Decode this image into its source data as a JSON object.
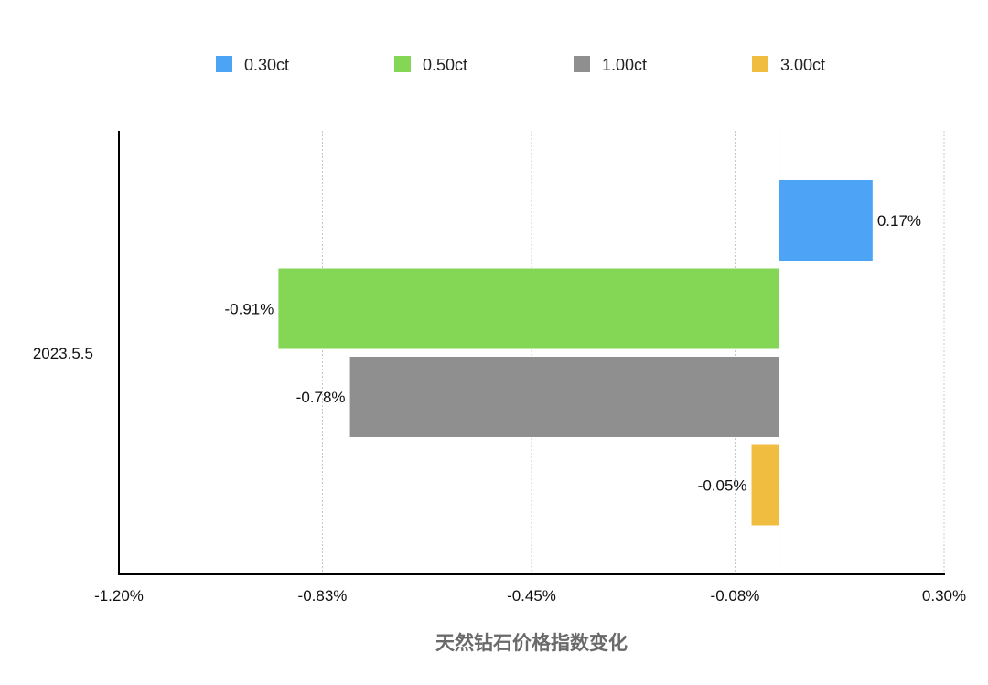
{
  "chart_data": {
    "type": "bar",
    "orientation": "horizontal",
    "categories": [
      "2023.5.5"
    ],
    "series": [
      {
        "name": "0.30ct",
        "values": [
          0.17
        ],
        "color": "#4da3f5",
        "data_label": "0.17%"
      },
      {
        "name": "0.50ct",
        "values": [
          -0.91
        ],
        "color": "#84d655",
        "data_label": "-0.91%"
      },
      {
        "name": "1.00ct",
        "values": [
          -0.78
        ],
        "color": "#8f8f8f",
        "data_label": "-0.78%"
      },
      {
        "name": "3.00ct",
        "values": [
          -0.05
        ],
        "color": "#f0bd41",
        "data_label": "-0.05%"
      }
    ],
    "x_ticks": [
      -1.2,
      -0.83,
      -0.45,
      -0.08,
      0.3
    ],
    "x_tick_labels": [
      "-1.20%",
      "-0.83%",
      "-0.45%",
      "-0.08%",
      "0.30%"
    ],
    "xlim": [
      -1.2,
      0.3
    ],
    "xlabel": "天然钻石价格指数变化",
    "ylabel": "",
    "title": "",
    "legend_position": "top",
    "grid": "vertical dotted"
  }
}
